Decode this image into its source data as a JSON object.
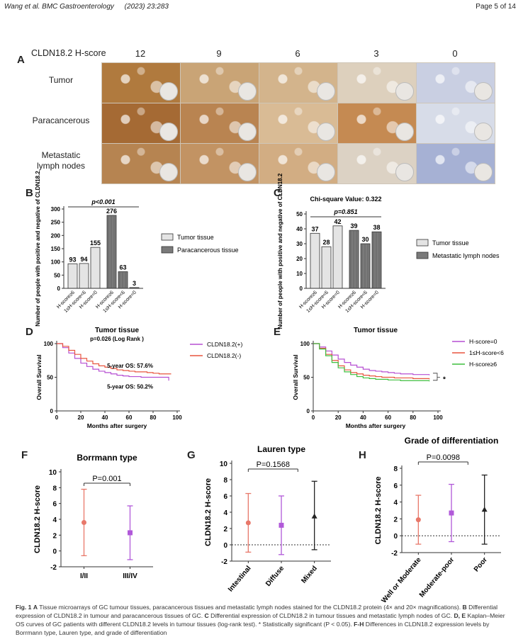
{
  "header": {
    "journal": "Wang et al. BMC Gastroenterology",
    "volume": "(2023) 23:283",
    "page": "Page 5 of 14"
  },
  "panel_a": {
    "letter": "A",
    "score_label": "CLDN18.2 H-score",
    "scores": [
      "12",
      "9",
      "6",
      "3",
      "0"
    ],
    "rows": [
      "Tumor",
      "Paracancerous",
      "Metastatic\nlymph nodes"
    ],
    "stain_colors": {
      "tumor": [
        "#b07a3e",
        "#c9a476",
        "#d3b48c",
        "#ddd0bd",
        "#c9cfe2"
      ],
      "paracancerous": [
        "#a56a34",
        "#b98451",
        "#d9bb95",
        "#c58a52",
        "#d7dce8"
      ],
      "metastatic": [
        "#b68451",
        "#c29363",
        "#d2ad83",
        "#dcd2c4",
        "#a6b1d4"
      ]
    }
  },
  "caption": {
    "fig": "Fig. 1",
    "a_letter": "A",
    "a_text": "Tissue microarrays of GC tumour tissues, paracancerous tissues and metastatic lymph nodes stained for the CLDN18.2 protein (4× and 20× magnifications).",
    "b_letter": "B",
    "b_text": "Differential expression of CLDN18.2 in tumour and paracancerous tissues of GC.",
    "c_letter": "C",
    "c_text": "Differential expression of CLDN18.2 in tumour tissues and metastatic lymph nodes of GC.",
    "de_letter": "D, E",
    "de_text": "Kaplan–Meier OS curves of GC patients with different CLDN18.2 levels in tumour tissues (log-rank test). * Statistically significant (P < 0.05).",
    "fh_letter": "F-H",
    "fh_text": "Differences in CLDN18.2 expression levels by Borrmann type, Lauren type, and grade of differentiation"
  },
  "chart_data": [
    {
      "id": "B",
      "letter": "B",
      "type": "bar",
      "ylabel": "Number of people with positive and negative of CLDN18.2",
      "categories": [
        "H-score≥6",
        "1≤H-score<6",
        "H-score=0",
        "H-score≥6",
        "1≤H-score<6",
        "H-score=0"
      ],
      "values": [
        93,
        94,
        155,
        276,
        63,
        3
      ],
      "groups": [
        0,
        0,
        0,
        1,
        1,
        1
      ],
      "ylim": [
        0,
        300
      ],
      "yticks": [
        0,
        50,
        100,
        150,
        200,
        250,
        300
      ],
      "legend": [
        "Tumor tissue",
        "Paracancerous tissue"
      ],
      "legend_position": "right",
      "annotation": "p<0.001",
      "colors": [
        "#e4e4e4",
        "#7a7a7a"
      ]
    },
    {
      "id": "C",
      "letter": "C",
      "type": "bar",
      "title": "Chi-square Value: 0.322",
      "ylabel": "Number of people with positive and negative of CLDN18.2",
      "categories": [
        "H-score≥6",
        "1≤H-score<6",
        "H-score=0",
        "H-score≥6",
        "1≤H-score<6",
        "H-score=0"
      ],
      "values": [
        37,
        28,
        42,
        39,
        30,
        38
      ],
      "groups": [
        0,
        0,
        0,
        1,
        1,
        1
      ],
      "ylim": [
        0,
        50
      ],
      "yticks": [
        0,
        10,
        20,
        30,
        40,
        50
      ],
      "legend": [
        "Tumor tissue",
        "Metastatic lymph nodes"
      ],
      "legend_position": "right",
      "annotation": "p=0.851",
      "colors": [
        "#e4e4e4",
        "#7a7a7a"
      ]
    },
    {
      "id": "D",
      "letter": "D",
      "type": "line",
      "title": "Tumor tissue",
      "subtitle": "p=0.026 (Log Rank )",
      "xlabel": "Months after surgery",
      "ylabel": "Overall Survival",
      "xlim": [
        0,
        100
      ],
      "ylim": [
        0,
        100
      ],
      "xticks": [
        0,
        20,
        40,
        60,
        80,
        100
      ],
      "yticks": [
        0,
        50,
        100
      ],
      "legend_position": "right",
      "series": [
        {
          "name": "CLDN18.2(+)",
          "color": "#b64fd2",
          "x": [
            0,
            5,
            10,
            15,
            20,
            25,
            30,
            35,
            40,
            45,
            50,
            55,
            60,
            65,
            70,
            75,
            80,
            85,
            90,
            93
          ],
          "y": [
            100,
            94,
            86,
            78,
            71,
            66,
            62,
            59,
            57,
            55,
            53,
            52,
            51,
            51,
            50,
            50,
            50,
            50,
            50,
            45
          ]
        },
        {
          "name": "CLDN18.2(-)",
          "color": "#e8553f",
          "x": [
            0,
            5,
            10,
            15,
            20,
            25,
            30,
            35,
            40,
            45,
            50,
            55,
            60,
            65,
            70,
            75,
            80,
            85,
            90,
            95
          ],
          "y": [
            100,
            96,
            90,
            84,
            78,
            74,
            70,
            67,
            65,
            63,
            61,
            60,
            59,
            58,
            58,
            57,
            56,
            55,
            55,
            55
          ]
        }
      ],
      "annotations": [
        "5-year OS: 57.6%",
        "5-year OS: 50.2%"
      ]
    },
    {
      "id": "E",
      "letter": "E",
      "type": "line",
      "title": "Tumor tissue",
      "xlabel": "Months after surgery",
      "ylabel": "Overall Survival",
      "xlim": [
        0,
        100
      ],
      "ylim": [
        0,
        100
      ],
      "xticks": [
        0,
        20,
        40,
        60,
        80,
        100
      ],
      "yticks": [
        0,
        50,
        100
      ],
      "legend_position": "right",
      "series": [
        {
          "name": "H-score=0",
          "color": "#b64fd2",
          "x": [
            0,
            5,
            10,
            15,
            20,
            25,
            30,
            35,
            40,
            45,
            50,
            55,
            60,
            65,
            70,
            75,
            80,
            85,
            90,
            93
          ],
          "y": [
            100,
            95,
            89,
            83,
            77,
            72,
            68,
            65,
            62,
            60,
            59,
            58,
            57,
            56,
            55,
            55,
            54,
            54,
            54,
            53
          ]
        },
        {
          "name": "1≤H-score<6",
          "color": "#e8553f",
          "x": [
            0,
            5,
            10,
            15,
            20,
            25,
            30,
            35,
            40,
            45,
            50,
            55,
            60,
            65,
            70,
            75,
            80,
            85,
            90,
            93
          ],
          "y": [
            100,
            93,
            84,
            75,
            67,
            61,
            57,
            55,
            53,
            52,
            51,
            50,
            50,
            49,
            49,
            49,
            48,
            48,
            48,
            47
          ]
        },
        {
          "name": "H-score≥6",
          "color": "#3fbf3f",
          "x": [
            0,
            5,
            10,
            15,
            20,
            25,
            30,
            35,
            40,
            45,
            50,
            55,
            60,
            65,
            70,
            75,
            80,
            85,
            90,
            93
          ],
          "y": [
            100,
            92,
            82,
            72,
            64,
            58,
            54,
            51,
            49,
            48,
            47,
            47,
            46,
            46,
            45,
            45,
            45,
            45,
            45,
            44
          ]
        }
      ],
      "annotation": "*"
    },
    {
      "id": "F",
      "letter": "F",
      "type": "scatter",
      "title": "Borrmann type",
      "ylabel": "CLDN18.2 H-score",
      "ylim": [
        -2,
        10
      ],
      "yticks": [
        -2,
        0,
        2,
        4,
        6,
        8,
        10
      ],
      "categories": [
        "I/II",
        "III/IV"
      ],
      "means": [
        3.6,
        2.3
      ],
      "upper": [
        7.8,
        5.7
      ],
      "lower": [
        -0.6,
        -1.1
      ],
      "colors": [
        "#e8786a",
        "#b159d9"
      ],
      "annotation": "P=0.001"
    },
    {
      "id": "G",
      "letter": "G",
      "type": "scatter",
      "title": "Lauren type",
      "ylabel": "CLDN18.2 H-score",
      "ylim": [
        -2,
        10
      ],
      "yticks": [
        -2,
        0,
        2,
        4,
        6,
        8,
        10
      ],
      "categories": [
        "Intestinal",
        "Diffuse",
        "Mixed"
      ],
      "means": [
        2.7,
        2.4,
        3.5
      ],
      "upper": [
        6.3,
        6.0,
        7.8
      ],
      "lower": [
        -0.9,
        -1.2,
        -0.6
      ],
      "colors": [
        "#e8786a",
        "#b159d9",
        "#222222"
      ],
      "annotation": "P=0.1568",
      "zero_line": true
    },
    {
      "id": "H",
      "letter": "H",
      "type": "scatter",
      "title": "Grade of differentiation",
      "ylabel": "CLDN18.2 H-score",
      "ylim": [
        -2,
        8
      ],
      "yticks": [
        -2,
        0,
        2,
        4,
        6,
        8
      ],
      "categories": [
        "Well or Moderate",
        "Moderate-poor",
        "Poor"
      ],
      "means": [
        1.9,
        2.7,
        3.1
      ],
      "upper": [
        4.8,
        6.1,
        7.2
      ],
      "lower": [
        -1.0,
        -0.7,
        -1.0
      ],
      "colors": [
        "#e8786a",
        "#b159d9",
        "#222222"
      ],
      "annotation": "P=0.0098",
      "zero_line": true
    }
  ]
}
